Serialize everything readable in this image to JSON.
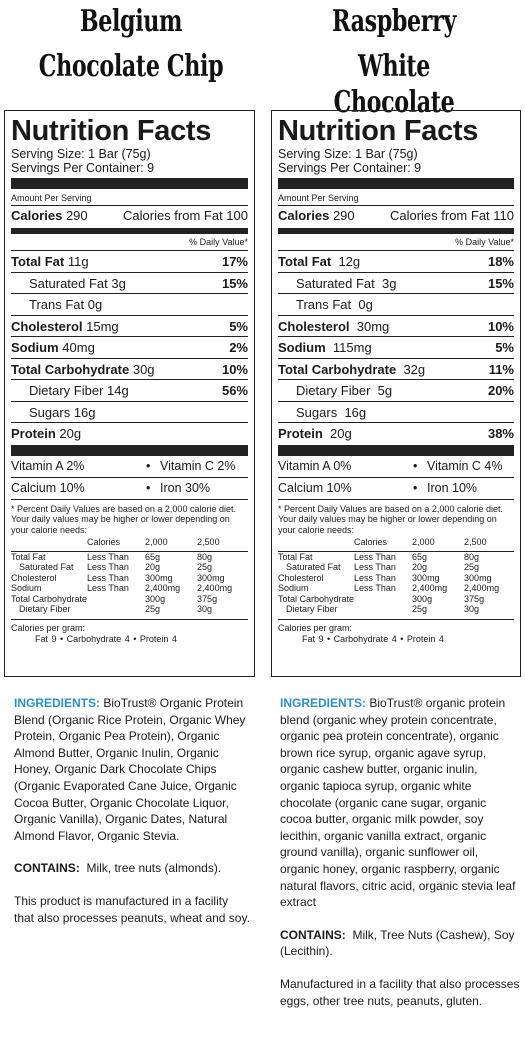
{
  "products": [
    {
      "title_line1": "Belgium",
      "title_line2": "Chocolate Chip",
      "nf_title": "Nutrition Facts",
      "serving_size": "Serving Size: 1 Bar (75g)",
      "servings_per_container": "Servings Per Container: 9",
      "amount_per_serving": "Amount Per Serving",
      "calories_label": "Calories",
      "calories_value": "290",
      "calories_from_fat": "Calories from Fat 100",
      "dv_header": "% Daily Value*",
      "nutrients": [
        {
          "label": "Total Fat",
          "amount": "11g",
          "dv": "17%"
        },
        {
          "label": "Saturated Fat",
          "amount": "3g",
          "dv": "15%"
        },
        {
          "label": "Trans Fat",
          "amount": "0g",
          "dv": ""
        },
        {
          "label": "Cholesterol",
          "amount": "15mg",
          "dv": "5%"
        },
        {
          "label": "Sodium",
          "amount": "40mg",
          "dv": "2%"
        },
        {
          "label": "Total Carbohydrate",
          "amount": "30g",
          "dv": "10%"
        },
        {
          "label": "Dietary Fiber",
          "amount": "14g",
          "dv": "56%"
        },
        {
          "label": "Sugars",
          "amount": "16g",
          "dv": ""
        },
        {
          "label": "Protein",
          "amount": "20g",
          "dv": ""
        }
      ],
      "vitamins": {
        "vit_a": "Vitamin A 2%",
        "vit_c": "Vitamin C 2%",
        "calcium": "Calcium 10%",
        "iron": "Iron 30%"
      },
      "footnote": "* Percent Daily Values are based on a 2,000 calorie diet. Your daily values may be higher or lower depending on your calorie needs:",
      "dv_table": {
        "header": [
          "",
          "Calories",
          "2,000",
          "2,500"
        ],
        "rows": [
          [
            "Total Fat",
            "Less Than",
            "65g",
            "80g"
          ],
          [
            "Saturated Fat",
            "Less Than",
            "20g",
            "25g"
          ],
          [
            "Cholesterol",
            "Less Than",
            "300mg",
            "300mg"
          ],
          [
            "Sodium",
            "Less Than",
            "2,400mg",
            "2,400mg"
          ],
          [
            "Total Carbohydrate",
            "",
            "300g",
            "375g"
          ],
          [
            "Dietary Fiber",
            "",
            "25g",
            "30g"
          ]
        ]
      },
      "calories_per_gram_label": "Calories per gram:",
      "calories_per_gram": "Fat 9   •   Carbohydrate 4   •   Protein 4",
      "ingredients_label": "INGREDIENTS:",
      "ingredients_text": "BioTrust® Organic Protein Blend (Organic Rice Protein, Organic Whey Protein, Organic Pea Protein), Organic Almond Butter, Organic Inulin, Organic Honey, Organic Dark Chocolate Chips (Organic Evaporated Cane Juice, Organic Cocoa Butter, Organic Chocolate Liquor, Organic Vanilla), Organic Dates, Natural Almond Flavor, Organic Stevia.",
      "contains_label": "CONTAINS:",
      "contains_text": "Milk, tree nuts (almonds).",
      "facility_text": "This product is manufactured in a facility that also processes peanuts, wheat and soy."
    },
    {
      "title_line1": "Raspberry",
      "title_line2": "White Chocolate",
      "nf_title": "Nutrition Facts",
      "serving_size": "Serving Size: 1 Bar (75g)",
      "servings_per_container": "Servings Per Container: 9",
      "amount_per_serving": "Amount Per Serving",
      "calories_label": "Calories",
      "calories_value": "290",
      "calories_from_fat": "Calories from Fat 110",
      "dv_header": "% Daily Value*",
      "nutrients": [
        {
          "label": "Total Fat",
          "amount": "12g",
          "dv": "18%"
        },
        {
          "label": "Saturated Fat",
          "amount": "3g",
          "dv": "15%"
        },
        {
          "label": "Trans Fat",
          "amount": "0g",
          "dv": ""
        },
        {
          "label": "Cholesterol",
          "amount": "30mg",
          "dv": "10%"
        },
        {
          "label": "Sodium",
          "amount": "115mg",
          "dv": "5%"
        },
        {
          "label": "Total Carbohydrate",
          "amount": "32g",
          "dv": "11%"
        },
        {
          "label": "Dietary Fiber",
          "amount": "5g",
          "dv": "20%"
        },
        {
          "label": "Sugars",
          "amount": "16g",
          "dv": ""
        },
        {
          "label": "Protein",
          "amount": "20g",
          "dv": "38%"
        }
      ],
      "vitamins": {
        "vit_a": "Vitamin A 0%",
        "vit_c": "Vitamin C 4%",
        "calcium": "Calcium 10%",
        "iron": "Iron 10%"
      },
      "footnote": "* Percent Daily Values are based on a 2,000 calorie diet. Your daily values may be higher or lower depending on your calorie needs:",
      "dv_table": {
        "header": [
          "",
          "Calories",
          "2,000",
          "2,500"
        ],
        "rows": [
          [
            "Total Fat",
            "Less Than",
            "65g",
            "80g"
          ],
          [
            "Saturated Fat",
            "Less Than",
            "20g",
            "25g"
          ],
          [
            "Cholesterol",
            "Less Than",
            "300mg",
            "300mg"
          ],
          [
            "Sodium",
            "Less Than",
            "2,400mg",
            "2,400mg"
          ],
          [
            "Total Carbohydrate",
            "",
            "300g",
            "375g"
          ],
          [
            "Dietary Fiber",
            "",
            "25g",
            "30g"
          ]
        ]
      },
      "calories_per_gram_label": "Calories per gram:",
      "calories_per_gram": "Fat 9   •   Carbohydrate 4   •   Protein 4",
      "ingredients_label": "INGREDIENTS:",
      "ingredients_text": "BioTrust® organic protein blend (organic whey protein concentrate, organic pea protein concentrate), organic brown rice syrup, organic agave syrup, organic cashew butter, organic inulin, organic tapioca syrup, organic white chocolate (organic cane sugar, organic cocoa butter, organic milk powder, soy lecithin, organic vanilla extract, organic ground vanilla), organic sunflower oil, organic honey, organic raspberry, organic natural flavors, citric acid, organic stevia leaf extract",
      "contains_label": "CONTAINS:",
      "contains_text": "Milk, Tree Nuts (Cashew), Soy (Lecithin).",
      "facility_text": "Manufactured in a facility that also processes eggs, other tree nuts, peanuts, gluten."
    }
  ]
}
